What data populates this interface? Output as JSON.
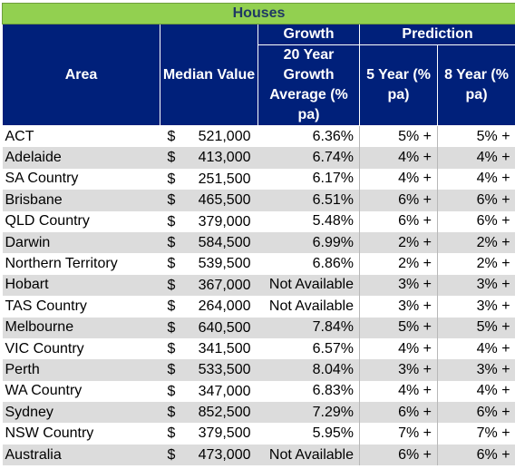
{
  "title": "Houses",
  "headers": {
    "area": "Area",
    "median": "Median Value",
    "growth_group": "Growth",
    "prediction_group": "Prediction",
    "growth_avg": "20 Year Growth Average (% pa)",
    "five_year": "5 Year (% pa)",
    "eight_year": "8 Year (% pa)"
  },
  "rows": [
    {
      "area": "ACT",
      "currency": "$",
      "median": "521,000",
      "growth": "6.36%",
      "five": "5% +",
      "eight": "5% +"
    },
    {
      "area": "Adelaide",
      "currency": "$",
      "median": "413,000",
      "growth": "6.74%",
      "five": "4% +",
      "eight": "4% +"
    },
    {
      "area": "SA Country",
      "currency": "$",
      "median": "251,500",
      "growth": "6.17%",
      "five": "4% +",
      "eight": "4% +"
    },
    {
      "area": "Brisbane",
      "currency": "$",
      "median": "465,500",
      "growth": "6.51%",
      "five": "6% +",
      "eight": "6% +"
    },
    {
      "area": "QLD Country",
      "currency": "$",
      "median": "379,000",
      "growth": "5.48%",
      "five": "6% +",
      "eight": "6% +"
    },
    {
      "area": "Darwin",
      "currency": "$",
      "median": "584,500",
      "growth": "6.99%",
      "five": "2% +",
      "eight": "2% +"
    },
    {
      "area": "Northern Territory",
      "currency": "$",
      "median": "539,500",
      "growth": "6.86%",
      "five": "2% +",
      "eight": "2% +"
    },
    {
      "area": "Hobart",
      "currency": "$",
      "median": "367,000",
      "growth": "Not Available",
      "five": "3% +",
      "eight": "3% +"
    },
    {
      "area": "TAS Country",
      "currency": "$",
      "median": "264,000",
      "growth": "Not Available",
      "five": "3% +",
      "eight": "3% +"
    },
    {
      "area": "Melbourne",
      "currency": "$",
      "median": "640,500",
      "growth": "7.84%",
      "five": "5% +",
      "eight": "5% +"
    },
    {
      "area": "VIC Country",
      "currency": "$",
      "median": "341,500",
      "growth": "6.57%",
      "five": "4% +",
      "eight": "4% +"
    },
    {
      "area": "Perth",
      "currency": "$",
      "median": "533,500",
      "growth": "8.04%",
      "five": "3% +",
      "eight": "3% +"
    },
    {
      "area": "WA Country",
      "currency": "$",
      "median": "347,000",
      "growth": "6.83%",
      "five": "4% +",
      "eight": "4% +"
    },
    {
      "area": "Sydney",
      "currency": "$",
      "median": "852,500",
      "growth": "7.29%",
      "five": "6% +",
      "eight": "6% +"
    },
    {
      "area": "NSW Country",
      "currency": "$",
      "median": "379,500",
      "growth": "5.95%",
      "five": "7% +",
      "eight": "7% +"
    },
    {
      "area": "Australia",
      "currency": "$",
      "median": "473,000",
      "growth": "Not Available",
      "five": "6% +",
      "eight": "6% +"
    }
  ],
  "colors": {
    "title_bg": "#92d050",
    "title_text": "#1f3864",
    "header_bg": "#00207a",
    "header_text": "#ffffff",
    "band_row": "#dcdcdc"
  }
}
